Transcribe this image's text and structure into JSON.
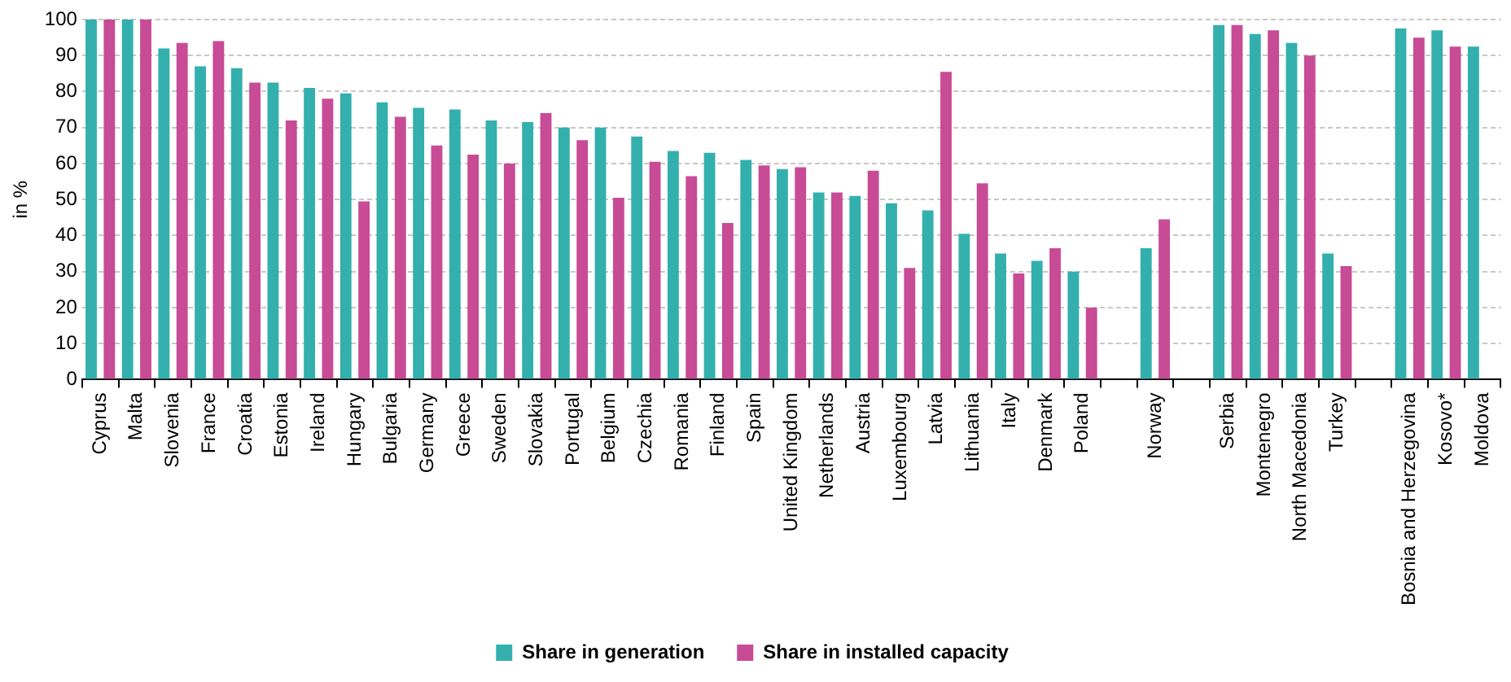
{
  "chart_data": {
    "type": "bar",
    "ylabel": "in %",
    "categories": [
      "Cyprus",
      "Malta",
      "Slovenia",
      "France",
      "Croatia",
      "Estonia",
      "Ireland",
      "Hungary",
      "Bulgaria",
      "Germany",
      "Greece",
      "Sweden",
      "Slovakia",
      "Portugal",
      "Belgium",
      "Czechia",
      "Romania",
      "Finland",
      "Spain",
      "United Kingdom",
      "Netherlands",
      "Austria",
      "Luxembourg",
      "Latvia",
      "Lithuania",
      "Italy",
      "Denmark",
      "Poland",
      null,
      "Norway",
      null,
      "Serbia",
      "Montenegro",
      "North Macedonia",
      "Turkey",
      null,
      "Bosnia and Herzegovina",
      "Kosovo*",
      "Moldova"
    ],
    "series": [
      {
        "name": "Share in generation",
        "color": "#33b0ad",
        "values": [
          100,
          100,
          92,
          87,
          86.5,
          82.5,
          81,
          79.5,
          77,
          75.5,
          75,
          72,
          71.5,
          70,
          70,
          67.5,
          63.5,
          63,
          61,
          58.5,
          52,
          51,
          49,
          47,
          40.5,
          35,
          33,
          30,
          null,
          36.5,
          null,
          98.5,
          96,
          93.5,
          35,
          null,
          97.5,
          97,
          92.5
        ]
      },
      {
        "name": "Share in installed capacity",
        "color": "#c84b96",
        "values": [
          100,
          100,
          93.5,
          94,
          82.5,
          72,
          78,
          49.5,
          73,
          65,
          62.5,
          60,
          74,
          66.5,
          50.5,
          60.5,
          56.5,
          43.5,
          59.5,
          59,
          52,
          58,
          31,
          85.5,
          54.5,
          29.5,
          36.5,
          20,
          null,
          44.5,
          null,
          98.5,
          97,
          90,
          31.5,
          null,
          95,
          92.5,
          null
        ]
      }
    ],
    "ylim": [
      0,
      100
    ],
    "yticks": [
      0,
      10,
      20,
      30,
      40,
      50,
      60,
      70,
      80,
      90,
      100
    ],
    "grid": "y",
    "legend": "bottom"
  }
}
